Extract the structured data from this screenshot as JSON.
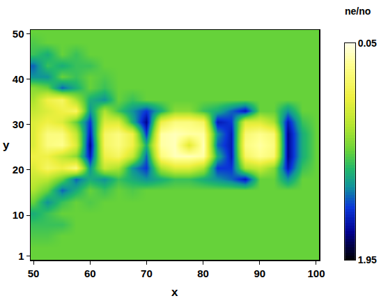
{
  "chart_data": {
    "type": "heatmap",
    "xlabel": "x",
    "ylabel": "y",
    "xlim": [
      49.5,
      100.5
    ],
    "ylim": [
      0.2,
      50.8
    ],
    "xticks": [
      50,
      60,
      70,
      80,
      90,
      100
    ],
    "yticks": [
      1,
      10,
      20,
      30,
      40,
      50
    ],
    "x": [
      50,
      52.5,
      55,
      57.5,
      60,
      62.5,
      65,
      67.5,
      70,
      72.5,
      75,
      77.5,
      80,
      82.5,
      85,
      87.5,
      90,
      92.5,
      95,
      97.5,
      100
    ],
    "y": [
      0.5,
      3,
      5.5,
      8,
      10.5,
      13,
      15.5,
      18,
      20.5,
      23,
      25.5,
      28,
      30.5,
      33,
      35.5,
      38,
      40.5,
      43,
      45.5,
      48,
      50.5
    ],
    "cells": [
      [
        1.0,
        1.0,
        1.0,
        1.0,
        1.0,
        1.0,
        1.0,
        1.0,
        1.0,
        1.0,
        1.0,
        1.0,
        1.0,
        1.0,
        1.0,
        1.0,
        1.0,
        1.0,
        1.0,
        1.0,
        1.0
      ],
      [
        1.0,
        1.0,
        1.0,
        1.0,
        1.0,
        1.0,
        1.0,
        1.0,
        1.0,
        1.0,
        1.0,
        1.0,
        1.0,
        1.0,
        1.0,
        1.0,
        1.0,
        1.0,
        1.0,
        1.0,
        1.0
      ],
      [
        1.05,
        1.05,
        1.0,
        1.0,
        1.0,
        1.0,
        1.0,
        1.0,
        1.0,
        1.0,
        1.0,
        1.0,
        1.0,
        1.0,
        1.0,
        1.0,
        1.0,
        1.0,
        1.0,
        1.0,
        1.0
      ],
      [
        1.1,
        1.1,
        1.1,
        1.0,
        1.0,
        1.0,
        1.0,
        1.0,
        1.0,
        1.0,
        1.0,
        1.0,
        1.0,
        1.0,
        1.0,
        1.0,
        1.0,
        1.0,
        1.0,
        1.0,
        1.0
      ],
      [
        1.2,
        1.1,
        1.0,
        1.0,
        1.0,
        1.0,
        1.0,
        1.0,
        1.0,
        1.0,
        1.0,
        1.0,
        1.0,
        1.0,
        1.0,
        1.0,
        1.0,
        1.0,
        1.0,
        1.0,
        1.0
      ],
      [
        1.0,
        1.3,
        1.1,
        1.0,
        1.05,
        1.0,
        1.0,
        1.0,
        1.0,
        1.0,
        1.0,
        1.0,
        1.0,
        1.0,
        1.0,
        1.0,
        1.0,
        1.0,
        1.0,
        1.0,
        1.0
      ],
      [
        0.8,
        1.0,
        1.4,
        1.2,
        1.0,
        1.1,
        1.0,
        1.05,
        1.0,
        1.0,
        1.0,
        1.0,
        1.0,
        1.0,
        1.0,
        1.0,
        1.0,
        1.0,
        1.0,
        1.0,
        1.0
      ],
      [
        0.7,
        0.75,
        1.0,
        1.4,
        1.2,
        1.3,
        1.1,
        1.2,
        1.3,
        1.2,
        1.1,
        1.1,
        1.2,
        1.3,
        1.4,
        1.6,
        1.0,
        1.0,
        1.3,
        1.0,
        1.0
      ],
      [
        0.6,
        0.4,
        0.5,
        0.3,
        1.3,
        0.7,
        0.8,
        1.3,
        1.5,
        0.8,
        0.6,
        0.6,
        0.8,
        1.5,
        1.5,
        0.8,
        0.7,
        0.9,
        1.6,
        1.1,
        1.0
      ],
      [
        0.5,
        0.5,
        0.7,
        0.9,
        1.6,
        0.5,
        0.4,
        0.7,
        1.4,
        0.3,
        0.15,
        0.15,
        0.2,
        1.2,
        1.6,
        0.4,
        0.25,
        0.35,
        1.7,
        1.2,
        1.0
      ],
      [
        0.6,
        0.3,
        0.25,
        0.6,
        1.7,
        0.4,
        0.3,
        0.5,
        1.2,
        0.2,
        0.15,
        0.6,
        0.15,
        1.4,
        1.6,
        0.3,
        0.2,
        0.3,
        1.7,
        1.2,
        1.0
      ],
      [
        0.6,
        0.3,
        0.3,
        0.7,
        1.6,
        0.4,
        0.3,
        0.5,
        1.5,
        0.2,
        0.15,
        0.2,
        0.2,
        1.3,
        1.6,
        0.35,
        0.25,
        0.35,
        1.7,
        1.2,
        1.0
      ],
      [
        0.6,
        0.5,
        0.6,
        1.0,
        1.5,
        0.6,
        0.6,
        1.2,
        1.7,
        0.5,
        0.3,
        0.3,
        0.4,
        1.6,
        1.5,
        0.6,
        0.6,
        0.8,
        1.6,
        1.1,
        1.0
      ],
      [
        0.7,
        0.6,
        0.5,
        0.4,
        1.3,
        0.8,
        1.1,
        1.3,
        1.5,
        1.2,
        0.9,
        0.9,
        1.1,
        1.2,
        1.4,
        1.6,
        1.0,
        1.0,
        1.3,
        1.0,
        1.0
      ],
      [
        0.8,
        0.5,
        0.4,
        0.8,
        1.2,
        1.3,
        1.0,
        1.1,
        1.0,
        1.0,
        1.0,
        1.0,
        1.0,
        1.0,
        1.0,
        1.0,
        1.0,
        1.0,
        1.0,
        1.0,
        1.0
      ],
      [
        0.9,
        1.0,
        1.4,
        1.2,
        1.0,
        1.1,
        1.0,
        1.0,
        1.0,
        1.0,
        1.0,
        1.0,
        1.0,
        1.0,
        1.0,
        1.0,
        1.0,
        1.0,
        1.0,
        1.0,
        1.0
      ],
      [
        1.3,
        1.3,
        1.0,
        1.1,
        1.0,
        1.05,
        1.0,
        1.0,
        1.0,
        1.0,
        1.0,
        1.0,
        1.0,
        1.0,
        1.0,
        1.0,
        1.0,
        1.0,
        1.0,
        1.0,
        1.0
      ],
      [
        1.4,
        1.1,
        1.2,
        1.1,
        1.1,
        1.0,
        1.0,
        1.0,
        1.0,
        1.0,
        1.0,
        1.0,
        1.0,
        1.0,
        1.0,
        1.0,
        1.0,
        1.0,
        1.0,
        1.0,
        1.0
      ],
      [
        1.1,
        1.2,
        1.0,
        1.1,
        1.0,
        1.0,
        1.0,
        1.0,
        1.0,
        1.0,
        1.0,
        1.0,
        1.0,
        1.0,
        1.0,
        1.0,
        1.0,
        1.0,
        1.0,
        1.0,
        1.0
      ],
      [
        1.05,
        1.0,
        1.0,
        1.0,
        1.0,
        1.0,
        1.0,
        1.0,
        1.0,
        1.0,
        1.0,
        1.0,
        1.0,
        1.0,
        1.0,
        1.0,
        1.0,
        1.0,
        1.0,
        1.0,
        1.0
      ],
      [
        1.0,
        1.0,
        1.0,
        1.0,
        1.0,
        1.0,
        1.0,
        1.0,
        1.0,
        1.0,
        1.0,
        1.0,
        1.0,
        1.0,
        1.0,
        1.0,
        1.0,
        1.0,
        1.0,
        1.0,
        1.0
      ]
    ],
    "colorbar": {
      "title": "ne/no",
      "range": [
        0.05,
        1.95
      ],
      "ticks": [
        0.05,
        1.95
      ]
    }
  }
}
